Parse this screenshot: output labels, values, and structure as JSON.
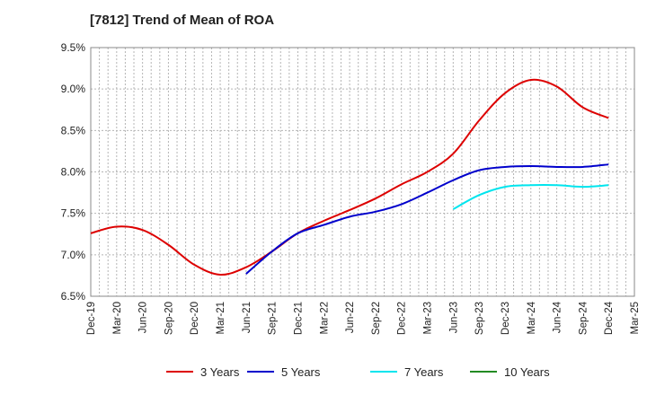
{
  "chart_data": {
    "type": "line",
    "title": "[7812]  Trend of Mean of ROA",
    "xlabel": "",
    "ylabel": "",
    "ylim": [
      6.5,
      9.5
    ],
    "yticks": [
      6.5,
      7.0,
      7.5,
      8.0,
      8.5,
      9.0,
      9.5
    ],
    "ytick_labels": [
      "6.5%",
      "7.0%",
      "7.5%",
      "8.0%",
      "8.5%",
      "9.0%",
      "9.5%"
    ],
    "categories": [
      "Dec-19",
      "Mar-20",
      "Jun-20",
      "Sep-20",
      "Dec-20",
      "Mar-21",
      "Jun-21",
      "Sep-21",
      "Dec-21",
      "Mar-22",
      "Jun-22",
      "Sep-22",
      "Dec-22",
      "Mar-23",
      "Jun-23",
      "Sep-23",
      "Dec-23",
      "Mar-24",
      "Jun-24",
      "Sep-24",
      "Dec-24",
      "Mar-25"
    ],
    "grid": true,
    "legend_position": "bottom",
    "series": [
      {
        "name": "3 Years",
        "color": "#dd0000",
        "values": [
          7.26,
          7.34,
          7.3,
          7.12,
          6.88,
          6.76,
          6.85,
          7.04,
          7.26,
          7.41,
          7.54,
          7.68,
          7.85,
          8.0,
          8.22,
          8.62,
          8.95,
          9.11,
          9.03,
          8.78,
          8.65,
          null
        ]
      },
      {
        "name": "5 Years",
        "color": "#0000cc",
        "values": [
          null,
          null,
          null,
          null,
          null,
          null,
          6.77,
          7.04,
          7.26,
          7.36,
          7.46,
          7.52,
          7.61,
          7.75,
          7.9,
          8.02,
          8.06,
          8.07,
          8.06,
          8.06,
          8.09,
          null
        ]
      },
      {
        "name": "7 Years",
        "color": "#00e5ee",
        "values": [
          null,
          null,
          null,
          null,
          null,
          null,
          null,
          null,
          null,
          null,
          null,
          null,
          null,
          null,
          7.55,
          7.72,
          7.82,
          7.84,
          7.84,
          7.82,
          7.84,
          null
        ]
      },
      {
        "name": "10 Years",
        "color": "#228b22",
        "values": [
          null,
          null,
          null,
          null,
          null,
          null,
          null,
          null,
          null,
          null,
          null,
          null,
          null,
          null,
          null,
          null,
          null,
          null,
          null,
          null,
          null,
          null
        ]
      }
    ]
  }
}
